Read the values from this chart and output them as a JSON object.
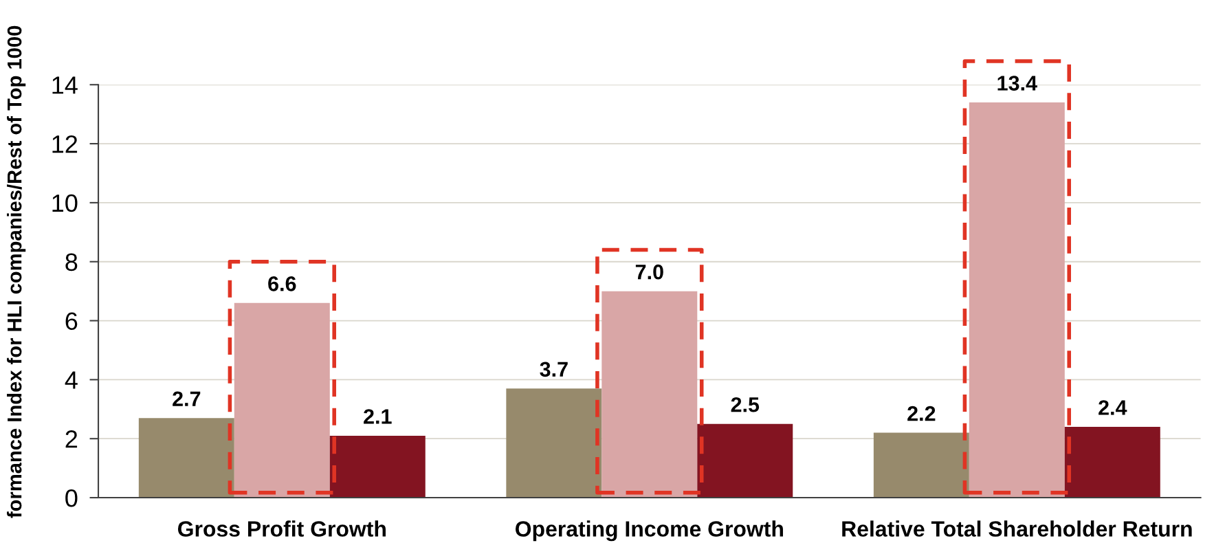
{
  "chart_data": {
    "type": "bar",
    "ylabel": "formance Index for HLI companies/Rest of Top 1000",
    "categories": [
      "Gross Profit Growth",
      "Operating Income Growth",
      "Relative Total Shareholder Return"
    ],
    "series": [
      {
        "color": "#978a6c",
        "values": [
          2.7,
          3.7,
          2.2
        ],
        "value_labels": [
          "2.7",
          "3.7",
          "2.2"
        ]
      },
      {
        "color": "#d9a6a6",
        "values": [
          6.6,
          7.0,
          13.4
        ],
        "value_labels": [
          "6.6",
          "7.0",
          "13.4"
        ]
      },
      {
        "color": "#831421",
        "values": [
          2.1,
          2.5,
          2.4
        ],
        "value_labels": [
          "2.1",
          "2.5",
          "2.4"
        ]
      }
    ],
    "ylim": [
      0,
      14
    ],
    "yticks": [
      0,
      2,
      4,
      6,
      8,
      10,
      12,
      14
    ],
    "grid": "y"
  }
}
